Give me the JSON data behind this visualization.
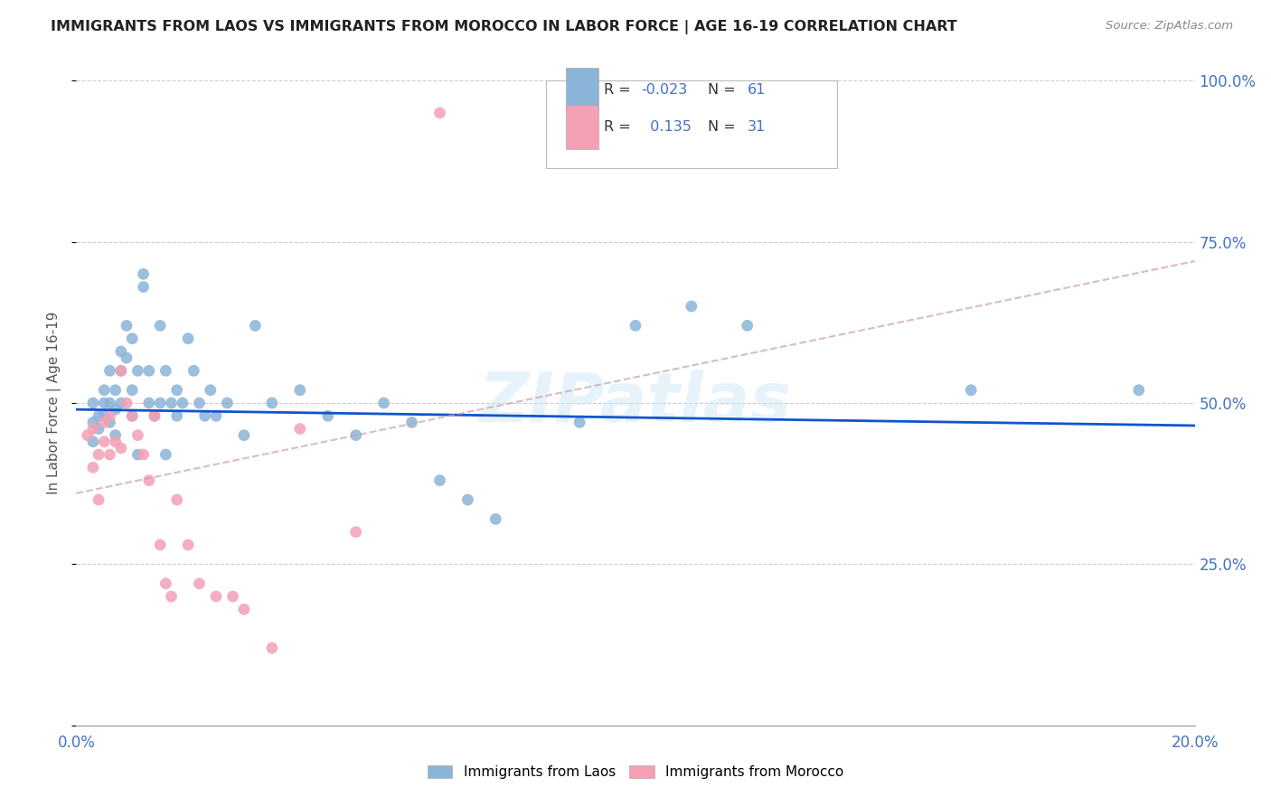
{
  "title": "IMMIGRANTS FROM LAOS VS IMMIGRANTS FROM MOROCCO IN LABOR FORCE | AGE 16-19 CORRELATION CHART",
  "source": "Source: ZipAtlas.com",
  "ylabel": "In Labor Force | Age 16-19",
  "x_min": 0.0,
  "x_max": 0.2,
  "y_min": 0.0,
  "y_max": 1.0,
  "x_ticks": [
    0.0,
    0.04,
    0.08,
    0.12,
    0.16,
    0.2
  ],
  "x_tick_labels": [
    "0.0%",
    "",
    "",
    "",
    "",
    "20.0%"
  ],
  "y_ticks": [
    0.0,
    0.25,
    0.5,
    0.75,
    1.0
  ],
  "y_tick_labels_right": [
    "",
    "25.0%",
    "50.0%",
    "75.0%",
    "100.0%"
  ],
  "laos_R": "-0.023",
  "laos_N": "61",
  "morocco_R": "0.135",
  "morocco_N": "31",
  "laos_color": "#8ab4d8",
  "morocco_color": "#f4a0b5",
  "laos_line_color": "#1155cc",
  "morocco_line_color": "#c8a0aa",
  "background_color": "#ffffff",
  "grid_color": "#cccccc",
  "watermark": "ZIPatlas",
  "legend_text_color": "#4472c4",
  "laos_scatter_x": [
    0.003,
    0.003,
    0.003,
    0.004,
    0.004,
    0.005,
    0.005,
    0.005,
    0.006,
    0.006,
    0.006,
    0.007,
    0.007,
    0.007,
    0.008,
    0.008,
    0.008,
    0.009,
    0.009,
    0.01,
    0.01,
    0.01,
    0.011,
    0.011,
    0.012,
    0.012,
    0.013,
    0.013,
    0.014,
    0.015,
    0.015,
    0.016,
    0.016,
    0.017,
    0.018,
    0.018,
    0.019,
    0.02,
    0.021,
    0.022,
    0.023,
    0.024,
    0.025,
    0.027,
    0.03,
    0.032,
    0.035,
    0.04,
    0.045,
    0.05,
    0.055,
    0.06,
    0.065,
    0.07,
    0.075,
    0.09,
    0.1,
    0.11,
    0.12,
    0.16,
    0.19
  ],
  "laos_scatter_y": [
    0.47,
    0.5,
    0.44,
    0.48,
    0.46,
    0.5,
    0.52,
    0.48,
    0.55,
    0.5,
    0.47,
    0.52,
    0.45,
    0.49,
    0.58,
    0.5,
    0.55,
    0.62,
    0.57,
    0.6,
    0.52,
    0.48,
    0.55,
    0.42,
    0.68,
    0.7,
    0.55,
    0.5,
    0.48,
    0.62,
    0.5,
    0.55,
    0.42,
    0.5,
    0.52,
    0.48,
    0.5,
    0.6,
    0.55,
    0.5,
    0.48,
    0.52,
    0.48,
    0.5,
    0.45,
    0.62,
    0.5,
    0.52,
    0.48,
    0.45,
    0.5,
    0.47,
    0.38,
    0.35,
    0.32,
    0.47,
    0.62,
    0.65,
    0.62,
    0.52,
    0.52
  ],
  "morocco_scatter_x": [
    0.002,
    0.003,
    0.003,
    0.004,
    0.004,
    0.005,
    0.005,
    0.006,
    0.006,
    0.007,
    0.008,
    0.008,
    0.009,
    0.01,
    0.011,
    0.012,
    0.013,
    0.014,
    0.015,
    0.016,
    0.017,
    0.018,
    0.02,
    0.022,
    0.025,
    0.028,
    0.03,
    0.035,
    0.04,
    0.05,
    0.065
  ],
  "morocco_scatter_y": [
    0.45,
    0.4,
    0.46,
    0.42,
    0.35,
    0.47,
    0.44,
    0.48,
    0.42,
    0.44,
    0.55,
    0.43,
    0.5,
    0.48,
    0.45,
    0.42,
    0.38,
    0.48,
    0.28,
    0.22,
    0.2,
    0.35,
    0.28,
    0.22,
    0.2,
    0.2,
    0.18,
    0.12,
    0.46,
    0.3,
    0.95
  ],
  "laos_line_x": [
    0.0,
    0.2
  ],
  "laos_line_y": [
    0.49,
    0.465
  ],
  "morocco_line_x": [
    0.0,
    0.2
  ],
  "morocco_line_y": [
    0.36,
    0.72
  ]
}
